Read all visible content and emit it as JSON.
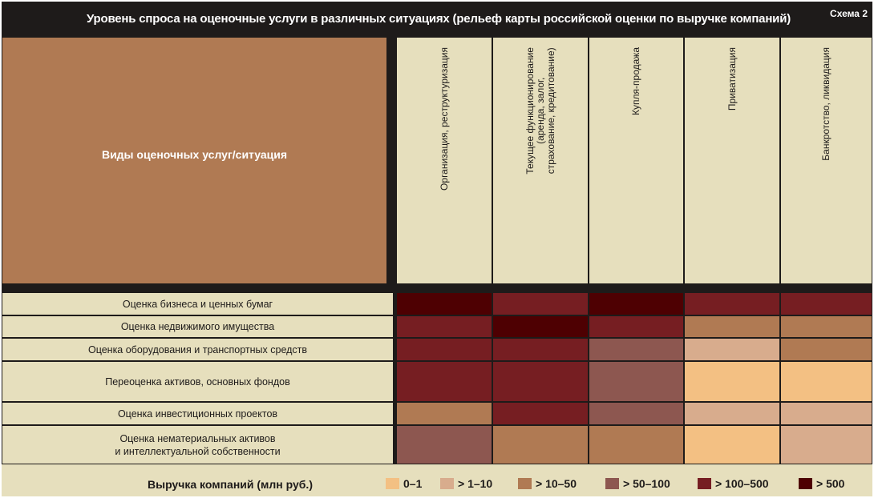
{
  "header": {
    "title": "Уровень спроса на оценочные услуги в различных ситуациях (рельеф карты российской оценки по выручке компаний)",
    "scheme_label": "Схема 2"
  },
  "chart_data": {
    "type": "heatmap",
    "corner_label": "Виды оценочных услуг/ситуация",
    "columns": [
      {
        "line1": "Организация, реструктуризация",
        "line2": ""
      },
      {
        "line1": "Текущее функционирование",
        "line2": "(аренда, залог,",
        "line3": "страхование, кредитование)"
      },
      {
        "line1": "Купля-продажа",
        "line2": ""
      },
      {
        "line1": "Приватизация",
        "line2": ""
      },
      {
        "line1": "Банкротство, ликвидация",
        "line2": ""
      }
    ],
    "rows": [
      {
        "label": "Оценка бизнеса и ценных бумаг",
        "levels": [
          5,
          4,
          5,
          4,
          4
        ]
      },
      {
        "label": "Оценка недвижимого имущества",
        "levels": [
          4,
          5,
          4,
          2,
          2
        ]
      },
      {
        "label": "Оценка оборудования и транспортных средств",
        "levels": [
          4,
          4,
          3,
          1,
          2
        ]
      },
      {
        "label": "Переоценка активов, основных фондов",
        "levels": [
          4,
          4,
          3,
          0,
          0
        ]
      },
      {
        "label": "Оценка инвестиционных проектов",
        "levels": [
          2,
          4,
          3,
          1,
          1
        ]
      },
      {
        "label": "Оценка нематериальных активов и интеллектуальной собственности",
        "label_line1": "Оценка нематериальных активов",
        "label_line2": "и интеллектуальной собственности",
        "levels": [
          3,
          2,
          2,
          0,
          1
        ]
      }
    ],
    "legend": {
      "title": "Выручка компаний (млн руб.)",
      "items": [
        {
          "label": "0–1",
          "color": "#f3c083"
        },
        {
          "label": "> 1–10",
          "color": "#d8ac8d"
        },
        {
          "label": "> 10–50",
          "color": "#b07a53"
        },
        {
          "label": "> 50–100",
          "color": "#8d5750"
        },
        {
          "label": "> 100–500",
          "color": "#761e22"
        },
        {
          "label": "> 500",
          "color": "#4e0002"
        }
      ]
    }
  }
}
